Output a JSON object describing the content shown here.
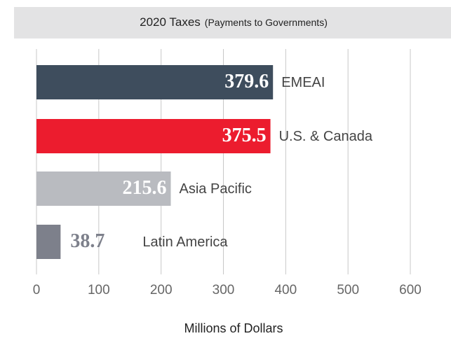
{
  "chart_data": {
    "type": "bar",
    "orientation": "horizontal",
    "title": "2020 Taxes",
    "subtitle": "(Payments to Governments)",
    "x_label": "Millions of Dollars",
    "categories": [
      "EMEAI",
      "U.S. & Canada",
      "Asia Pacific",
      "Latin America"
    ],
    "values": [
      379.6,
      375.5,
      215.6,
      38.7
    ],
    "colors": [
      "#3e4d5d",
      "#ec1c2e",
      "#b9bbc0",
      "#7d808b"
    ],
    "xlim": [
      0,
      600
    ],
    "xticks": [
      0,
      100,
      200,
      300,
      400,
      500,
      600
    ],
    "grid": true
  }
}
